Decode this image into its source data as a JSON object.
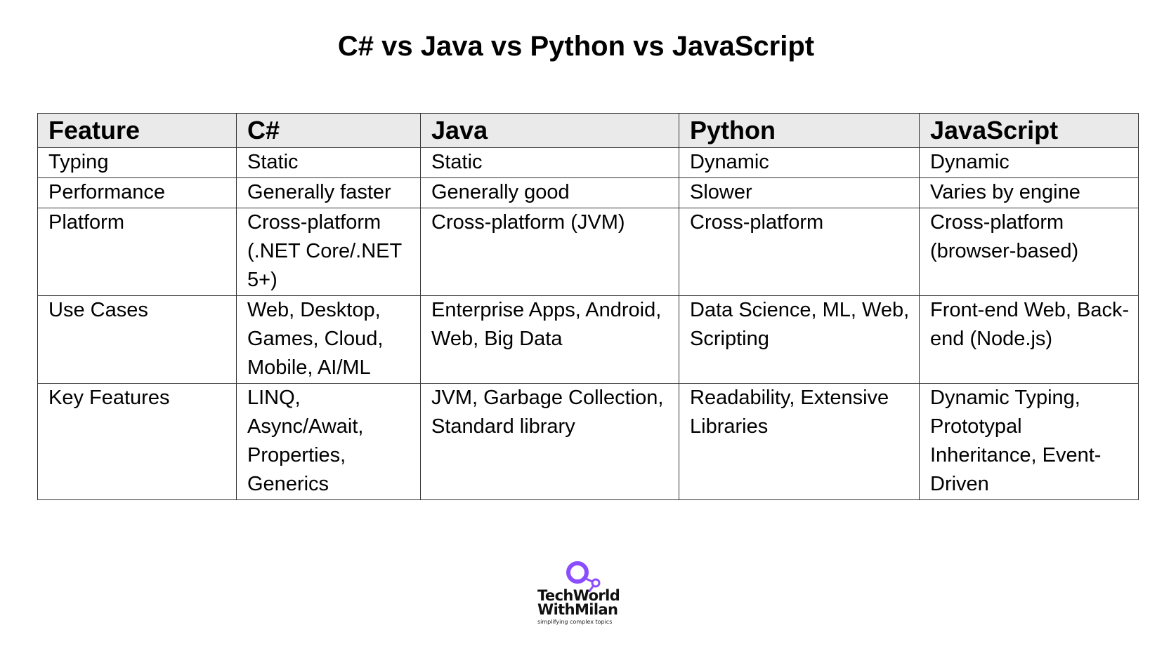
{
  "title": "C# vs Java vs Python vs JavaScript",
  "table": {
    "headers": [
      "Feature",
      "C#",
      "Java",
      "Python",
      "JavaScript"
    ],
    "rows": [
      [
        "Typing",
        "Static",
        "Static",
        "Dynamic",
        "Dynamic"
      ],
      [
        "Performance",
        "Generally faster",
        "Generally good",
        "Slower",
        "Varies by engine"
      ],
      [
        "Platform",
        "Cross-platform (.NET Core/.NET 5+)",
        "Cross-platform (JVM)",
        "Cross-platform",
        "Cross-platform (browser-based)"
      ],
      [
        "Use Cases",
        "Web, Desktop, Games, Cloud, Mobile, AI/ML",
        "Enterprise Apps, Android, Web, Big Data",
        "Data Science, ML, Web, Scripting",
        "Front-end Web, Back-end (Node.js)"
      ],
      [
        "Key Features",
        "LINQ, Async/Await, Properties, Generics",
        "JVM, Garbage Collection, Standard library",
        "Readability, Extensive Libraries",
        "Dynamic Typing, Prototypal Inheritance, Event-Driven"
      ]
    ]
  },
  "logo": {
    "line1": "TechWorld",
    "line2": "WithMilan",
    "tagline": "simplifying complex topics",
    "accent_color": "#8a4dff"
  }
}
